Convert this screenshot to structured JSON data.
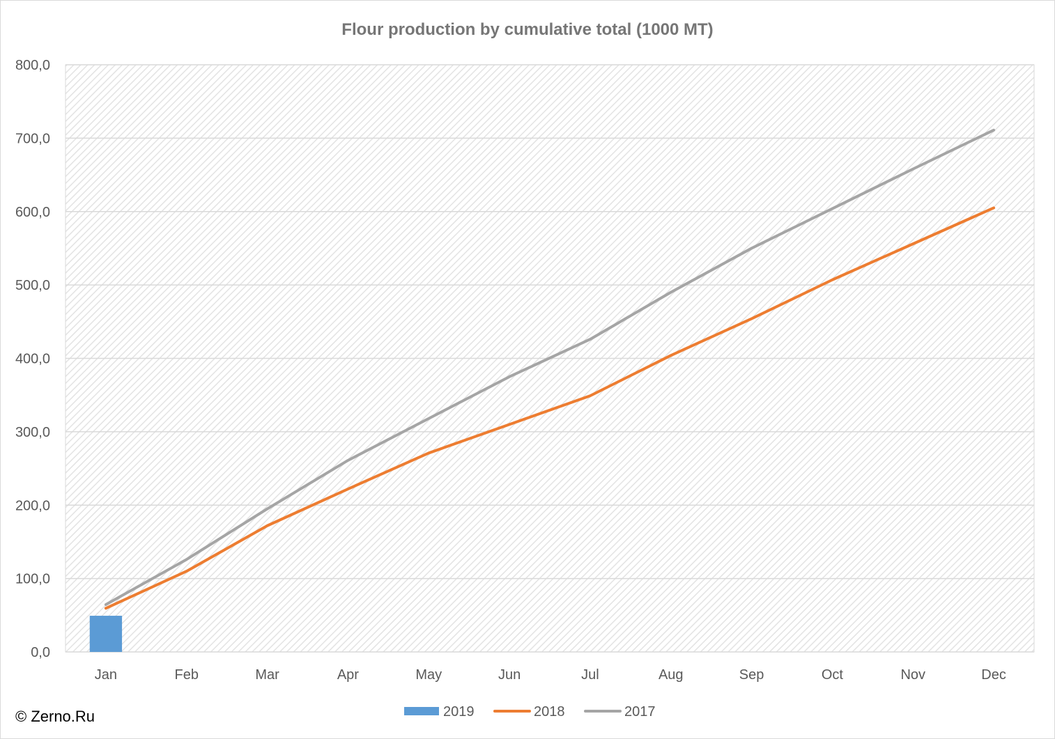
{
  "chart_data": {
    "type": "line",
    "title": "Flour production by cumulative total (1000 MT)",
    "xlabel": "",
    "ylabel": "",
    "categories": [
      "Jan",
      "Feb",
      "Mar",
      "Apr",
      "May",
      "Jun",
      "Jul",
      "Aug",
      "Sep",
      "Oct",
      "Nov",
      "Dec"
    ],
    "y_ticks": [
      "0,0",
      "100,0",
      "200,0",
      "300,0",
      "400,0",
      "500,0",
      "600,0",
      "700,0",
      "800,0"
    ],
    "ylim": [
      0,
      800
    ],
    "grid": true,
    "legend_position": "bottom",
    "series": [
      {
        "name": "2019",
        "kind": "bar",
        "color": "#5B9BD5",
        "values": [
          49.3,
          null,
          null,
          null,
          null,
          null,
          null,
          null,
          null,
          null,
          null,
          null
        ]
      },
      {
        "name": "2018",
        "kind": "line",
        "color": "#ED7D31",
        "values": [
          59.5,
          110,
          172,
          222,
          271,
          310,
          349,
          404,
          454,
          507,
          556,
          605
        ]
      },
      {
        "name": "2017",
        "kind": "line",
        "color": "#A5A5A5",
        "values": [
          64.5,
          126,
          195,
          261,
          318,
          375,
          426,
          490,
          550,
          604,
          658,
          711
        ]
      }
    ]
  },
  "copyright": "© Zerno.Ru"
}
